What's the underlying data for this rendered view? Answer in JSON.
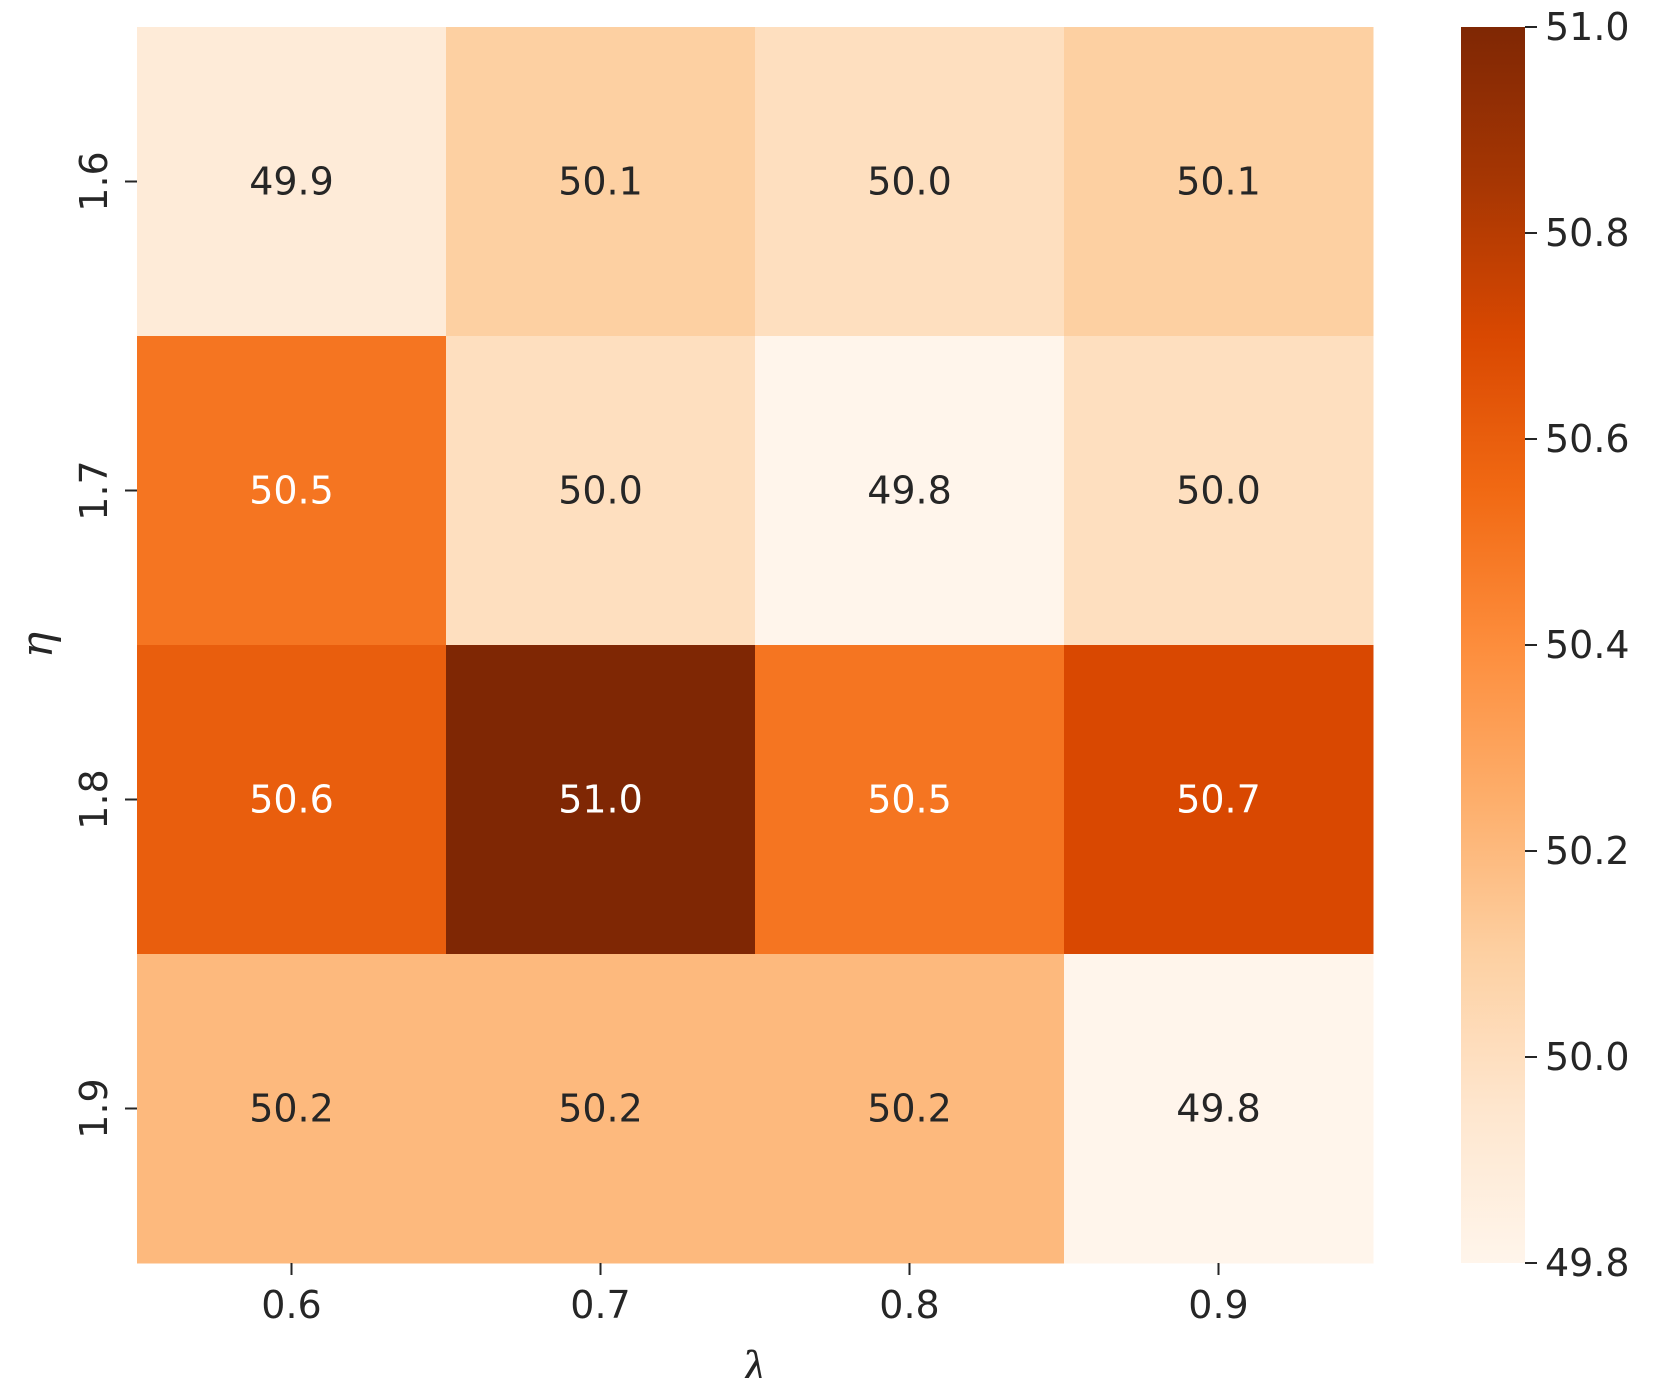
{
  "chart_data": {
    "type": "heatmap",
    "title": "",
    "xlabel": "λ",
    "ylabel": "η",
    "x_categories": [
      "0.6",
      "0.7",
      "0.8",
      "0.9"
    ],
    "y_categories": [
      "1.6",
      "1.7",
      "1.8",
      "1.9"
    ],
    "values": [
      [
        49.9,
        50.1,
        50.0,
        50.1
      ],
      [
        50.5,
        50.0,
        49.8,
        50.0
      ],
      [
        50.6,
        51.0,
        50.5,
        50.7
      ],
      [
        50.2,
        50.2,
        50.2,
        49.8
      ]
    ],
    "value_labels": [
      [
        "49.9",
        "50.1",
        "50.0",
        "50.1"
      ],
      [
        "50.5",
        "50.0",
        "49.8",
        "50.0"
      ],
      [
        "50.6",
        "51.0",
        "50.5",
        "50.7"
      ],
      [
        "50.2",
        "50.2",
        "50.2",
        "49.8"
      ]
    ],
    "colormap": "Oranges",
    "colorbar": {
      "range": [
        49.8,
        51.0
      ],
      "ticks": [
        49.8,
        50.0,
        50.2,
        50.4,
        50.6,
        50.8,
        51.0
      ],
      "tick_labels": [
        "49.8",
        "50.0",
        "50.2",
        "50.4",
        "50.6",
        "50.8",
        "51.0"
      ]
    },
    "colors": {
      "stops": [
        "#fff5eb",
        "#fee6ce",
        "#fdd0a2",
        "#fdae6b",
        "#fd8d3c",
        "#f16913",
        "#d94801",
        "#a63603",
        "#7f2704"
      ],
      "text_dark": "#262626",
      "text_light": "#ffffff"
    }
  }
}
